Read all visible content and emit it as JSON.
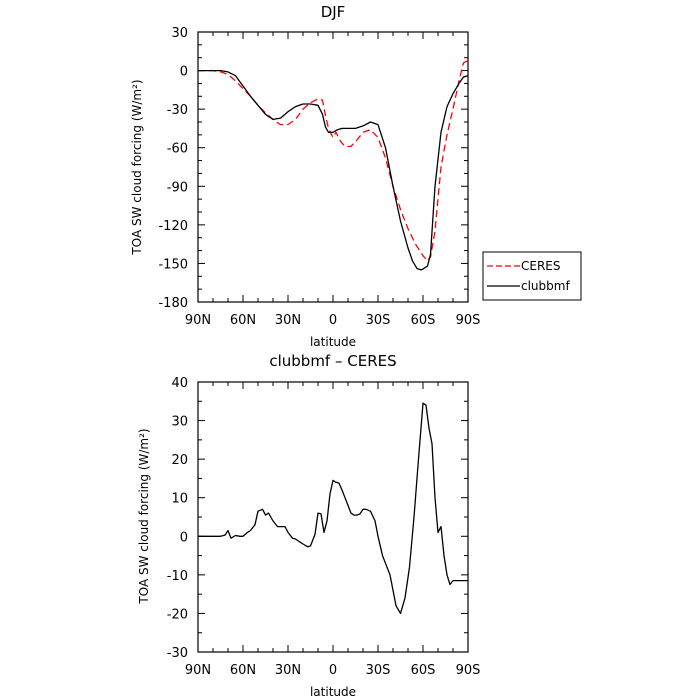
{
  "chart_data": [
    {
      "type": "line",
      "title": "DJF",
      "xlabel": "latitude",
      "ylabel": "TOA SW cloud forcing (W/m²)",
      "xlim": [
        90,
        -90
      ],
      "ylim": [
        -180,
        30
      ],
      "x_ticks": [
        90,
        60,
        30,
        0,
        -30,
        -60,
        -90
      ],
      "x_tick_labels": [
        "90N",
        "60N",
        "30N",
        "0",
        "30S",
        "60S",
        "90S"
      ],
      "y_ticks": [
        30,
        0,
        -30,
        -60,
        -90,
        -120,
        -150,
        -180
      ],
      "y_tick_labels": [
        "30",
        "0",
        "-30",
        "-60",
        "-90",
        "-120",
        "-150",
        "-180"
      ],
      "legend": {
        "position": "right",
        "entries": [
          "CERES",
          "clubbmf"
        ]
      },
      "series": [
        {
          "name": "CERES",
          "color": "#ff0000",
          "dash": "dashed",
          "x": [
            90,
            80,
            75,
            70,
            65,
            60,
            55,
            50,
            45,
            40,
            35,
            30,
            25,
            20,
            15,
            10,
            7,
            5,
            3,
            0,
            -2,
            -5,
            -8,
            -12,
            -16,
            -20,
            -25,
            -30,
            -35,
            -40,
            -45,
            -50,
            -55,
            -60,
            -63,
            -65,
            -68,
            -72,
            -76,
            -80,
            -84,
            -87,
            -90
          ],
          "y": [
            0,
            0,
            -1,
            -3,
            -8,
            -14,
            -20,
            -27,
            -33,
            -38,
            -42,
            -42,
            -38,
            -30,
            -25,
            -22,
            -23,
            -35,
            -45,
            -52,
            -48,
            -55,
            -59,
            -59,
            -54,
            -48,
            -46,
            -52,
            -68,
            -90,
            -108,
            -123,
            -135,
            -144,
            -148,
            -145,
            -125,
            -75,
            -50,
            -30,
            -8,
            6,
            8
          ]
        },
        {
          "name": "clubbmf",
          "color": "#000000",
          "dash": "solid",
          "x": [
            90,
            80,
            75,
            70,
            65,
            60,
            55,
            50,
            45,
            40,
            35,
            30,
            25,
            20,
            15,
            10,
            7,
            5,
            3,
            0,
            -3,
            -6,
            -10,
            -15,
            -20,
            -25,
            -30,
            -35,
            -40,
            -45,
            -50,
            -53,
            -56,
            -59,
            -63,
            -65,
            -68,
            -72,
            -76,
            -80,
            -84,
            -87,
            -90
          ],
          "y": [
            0,
            0,
            0,
            -1,
            -4,
            -12,
            -20,
            -27,
            -34,
            -38,
            -37,
            -32,
            -28,
            -26,
            -26,
            -27,
            -34,
            -44,
            -48,
            -48,
            -46,
            -45,
            -45,
            -45,
            -43,
            -40,
            -42,
            -60,
            -90,
            -117,
            -138,
            -148,
            -154,
            -155,
            -152,
            -143,
            -90,
            -48,
            -28,
            -18,
            -10,
            -5,
            -4
          ]
        }
      ]
    },
    {
      "type": "line",
      "title": "clubbmf – CERES",
      "xlabel": "latitude",
      "ylabel": "TOA SW cloud forcing (W/m²)",
      "xlim": [
        90,
        -90
      ],
      "ylim": [
        -30,
        40
      ],
      "x_ticks": [
        90,
        60,
        30,
        0,
        -30,
        -60,
        -90
      ],
      "x_tick_labels": [
        "90N",
        "60N",
        "30N",
        "0",
        "30S",
        "60S",
        "90S"
      ],
      "y_ticks": [
        40,
        30,
        20,
        10,
        0,
        -10,
        -20,
        -30
      ],
      "y_tick_labels": [
        "40",
        "30",
        "20",
        "10",
        "0",
        "-10",
        "-20",
        "-30"
      ],
      "series": [
        {
          "name": "",
          "color": "#000000",
          "dash": "solid",
          "x": [
            90,
            80,
            75,
            72,
            70,
            68,
            65,
            62,
            60,
            57,
            55,
            52,
            50,
            47,
            45,
            43,
            40,
            37,
            35,
            32,
            30,
            27,
            25,
            22,
            20,
            17,
            15,
            12,
            10,
            8,
            6,
            4,
            2,
            0,
            -2,
            -4,
            -6,
            -8,
            -10,
            -12,
            -14,
            -16,
            -18,
            -20,
            -22,
            -25,
            -28,
            -30,
            -33,
            -35,
            -38,
            -40,
            -42,
            -45,
            -48,
            -51,
            -54,
            -57,
            -60,
            -62,
            -64,
            -66,
            -68,
            -70,
            -72,
            -74,
            -76,
            -78,
            -80,
            -82,
            -84,
            -86,
            -88,
            -90
          ],
          "y": [
            0,
            0,
            0,
            0.3,
            1.5,
            -0.5,
            0.2,
            0,
            0,
            1,
            1.5,
            3,
            6.5,
            7,
            5.5,
            6,
            4,
            2.5,
            2.5,
            2.5,
            1,
            -0.5,
            -0.7,
            -1.5,
            -2,
            -2.7,
            -2.5,
            0.5,
            6,
            5.8,
            1,
            4,
            11,
            14.5,
            14,
            13.8,
            12,
            10,
            8,
            6,
            5.5,
            5.5,
            5.8,
            7,
            7,
            6.5,
            4,
            0,
            -5,
            -7,
            -10,
            -14,
            -18,
            -20,
            -16,
            -8,
            5,
            20,
            34.5,
            34,
            28,
            24,
            10,
            1,
            2.5,
            -5,
            -10,
            -12.5,
            -11.5,
            -11.5,
            -11.5,
            -11.5,
            -11.5,
            -11.5
          ]
        }
      ]
    }
  ]
}
